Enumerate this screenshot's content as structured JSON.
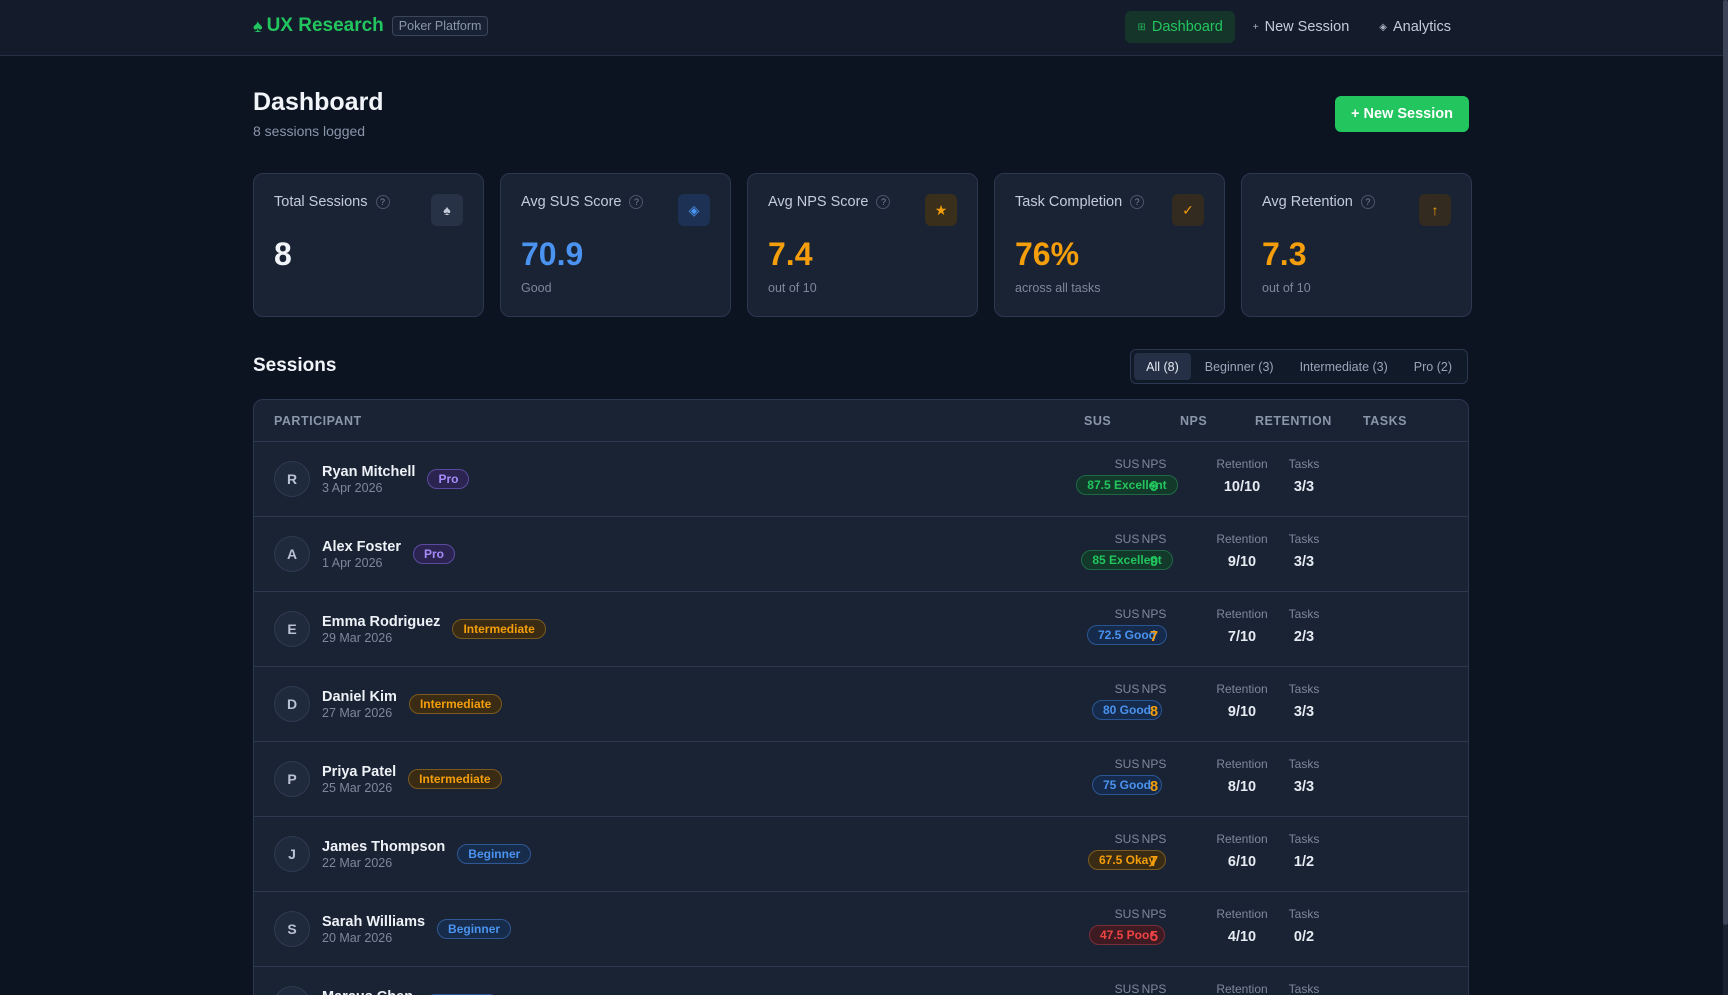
{
  "brand": {
    "name": "UX Research",
    "tag": "Poker Platform"
  },
  "nav": [
    {
      "label": "Dashboard",
      "icon": "grid-icon",
      "glyph": "⊞",
      "active": true
    },
    {
      "label": "New Session",
      "icon": "plus-icon",
      "glyph": "+",
      "active": false
    },
    {
      "label": "Analytics",
      "icon": "diamond-icon",
      "glyph": "◈",
      "active": false
    }
  ],
  "header": {
    "title": "Dashboard",
    "subtitle": "8 sessions logged",
    "new_session_label": "+ New Session"
  },
  "stats": [
    {
      "label": "Total Sessions",
      "value": "8",
      "note": "",
      "icon": "spade-icon",
      "glyph": "♠",
      "color": "#f1f4f8",
      "icon_color": "#c4ccd9"
    },
    {
      "label": "Avg SUS Score",
      "value": "70.9",
      "note": "Good",
      "icon": "diamond-icon",
      "glyph": "◈",
      "color": "#4b93f0",
      "icon_color": "#4b93f0"
    },
    {
      "label": "Avg NPS Score",
      "value": "7.4",
      "note": "out of 10",
      "icon": "star-icon",
      "glyph": "★",
      "color": "#f59e0b",
      "icon_color": "#f59e0b"
    },
    {
      "label": "Task Completion",
      "value": "76%",
      "note": "across all tasks",
      "icon": "check-icon",
      "glyph": "✓",
      "color": "#f59e0b",
      "icon_color": "#f59e0b"
    },
    {
      "label": "Avg Retention",
      "value": "7.3",
      "note": "out of 10",
      "icon": "arrow-up-icon",
      "glyph": "↑",
      "color": "#f59e0b",
      "icon_color": "#f59e0b"
    }
  ],
  "sessions": {
    "title": "Sessions",
    "filters": [
      {
        "label": "All (8)",
        "active": true
      },
      {
        "label": "Beginner (3)",
        "active": false
      },
      {
        "label": "Intermediate (3)",
        "active": false
      },
      {
        "label": "Pro (2)",
        "active": false
      }
    ],
    "columns": {
      "participant": "PARTICIPANT",
      "sus": "SUS",
      "nps": "NPS",
      "retention": "RETENTION",
      "tasks": "TASKS"
    },
    "row_labels": {
      "sus": "SUS",
      "nps": "NPS",
      "retention": "Retention",
      "tasks": "Tasks"
    },
    "rows": [
      {
        "initial": "R",
        "name": "Ryan Mitchell",
        "date": "3 Apr 2026",
        "level": "Pro",
        "level_class": "pro",
        "sus": "87.5 Excellent",
        "sus_class": "excellent",
        "nps": "9",
        "nps_color": "#22c55e",
        "retention": "10/10",
        "tasks": "3/3"
      },
      {
        "initial": "A",
        "name": "Alex Foster",
        "date": "1 Apr 2026",
        "level": "Pro",
        "level_class": "pro",
        "sus": "85 Excellent",
        "sus_class": "excellent",
        "nps": "9",
        "nps_color": "#22c55e",
        "retention": "9/10",
        "tasks": "3/3"
      },
      {
        "initial": "E",
        "name": "Emma Rodriguez",
        "date": "29 Mar 2026",
        "level": "Intermediate",
        "level_class": "intermediate",
        "sus": "72.5 Good",
        "sus_class": "good",
        "nps": "7",
        "nps_color": "#f59e0b",
        "retention": "7/10",
        "tasks": "2/3"
      },
      {
        "initial": "D",
        "name": "Daniel Kim",
        "date": "27 Mar 2026",
        "level": "Intermediate",
        "level_class": "intermediate",
        "sus": "80 Good",
        "sus_class": "good",
        "nps": "8",
        "nps_color": "#f59e0b",
        "retention": "9/10",
        "tasks": "3/3"
      },
      {
        "initial": "P",
        "name": "Priya Patel",
        "date": "25 Mar 2026",
        "level": "Intermediate",
        "level_class": "intermediate",
        "sus": "75 Good",
        "sus_class": "good",
        "nps": "8",
        "nps_color": "#f59e0b",
        "retention": "8/10",
        "tasks": "3/3"
      },
      {
        "initial": "J",
        "name": "James Thompson",
        "date": "22 Mar 2026",
        "level": "Beginner",
        "level_class": "beginner",
        "sus": "67.5 Okay",
        "sus_class": "okay",
        "nps": "7",
        "nps_color": "#f59e0b",
        "retention": "6/10",
        "tasks": "1/2"
      },
      {
        "initial": "S",
        "name": "Sarah Williams",
        "date": "20 Mar 2026",
        "level": "Beginner",
        "level_class": "beginner",
        "sus": "47.5 Poor",
        "sus_class": "poor",
        "nps": "5",
        "nps_color": "#ef4444",
        "retention": "4/10",
        "tasks": "0/2"
      },
      {
        "initial": "M",
        "name": "Marcus Chen",
        "date": "",
        "level": "Beginner",
        "level_class": "beginner",
        "sus": "",
        "sus_class": "good",
        "nps": "",
        "nps_color": "#f59e0b",
        "retention": "",
        "tasks": ""
      }
    ]
  }
}
